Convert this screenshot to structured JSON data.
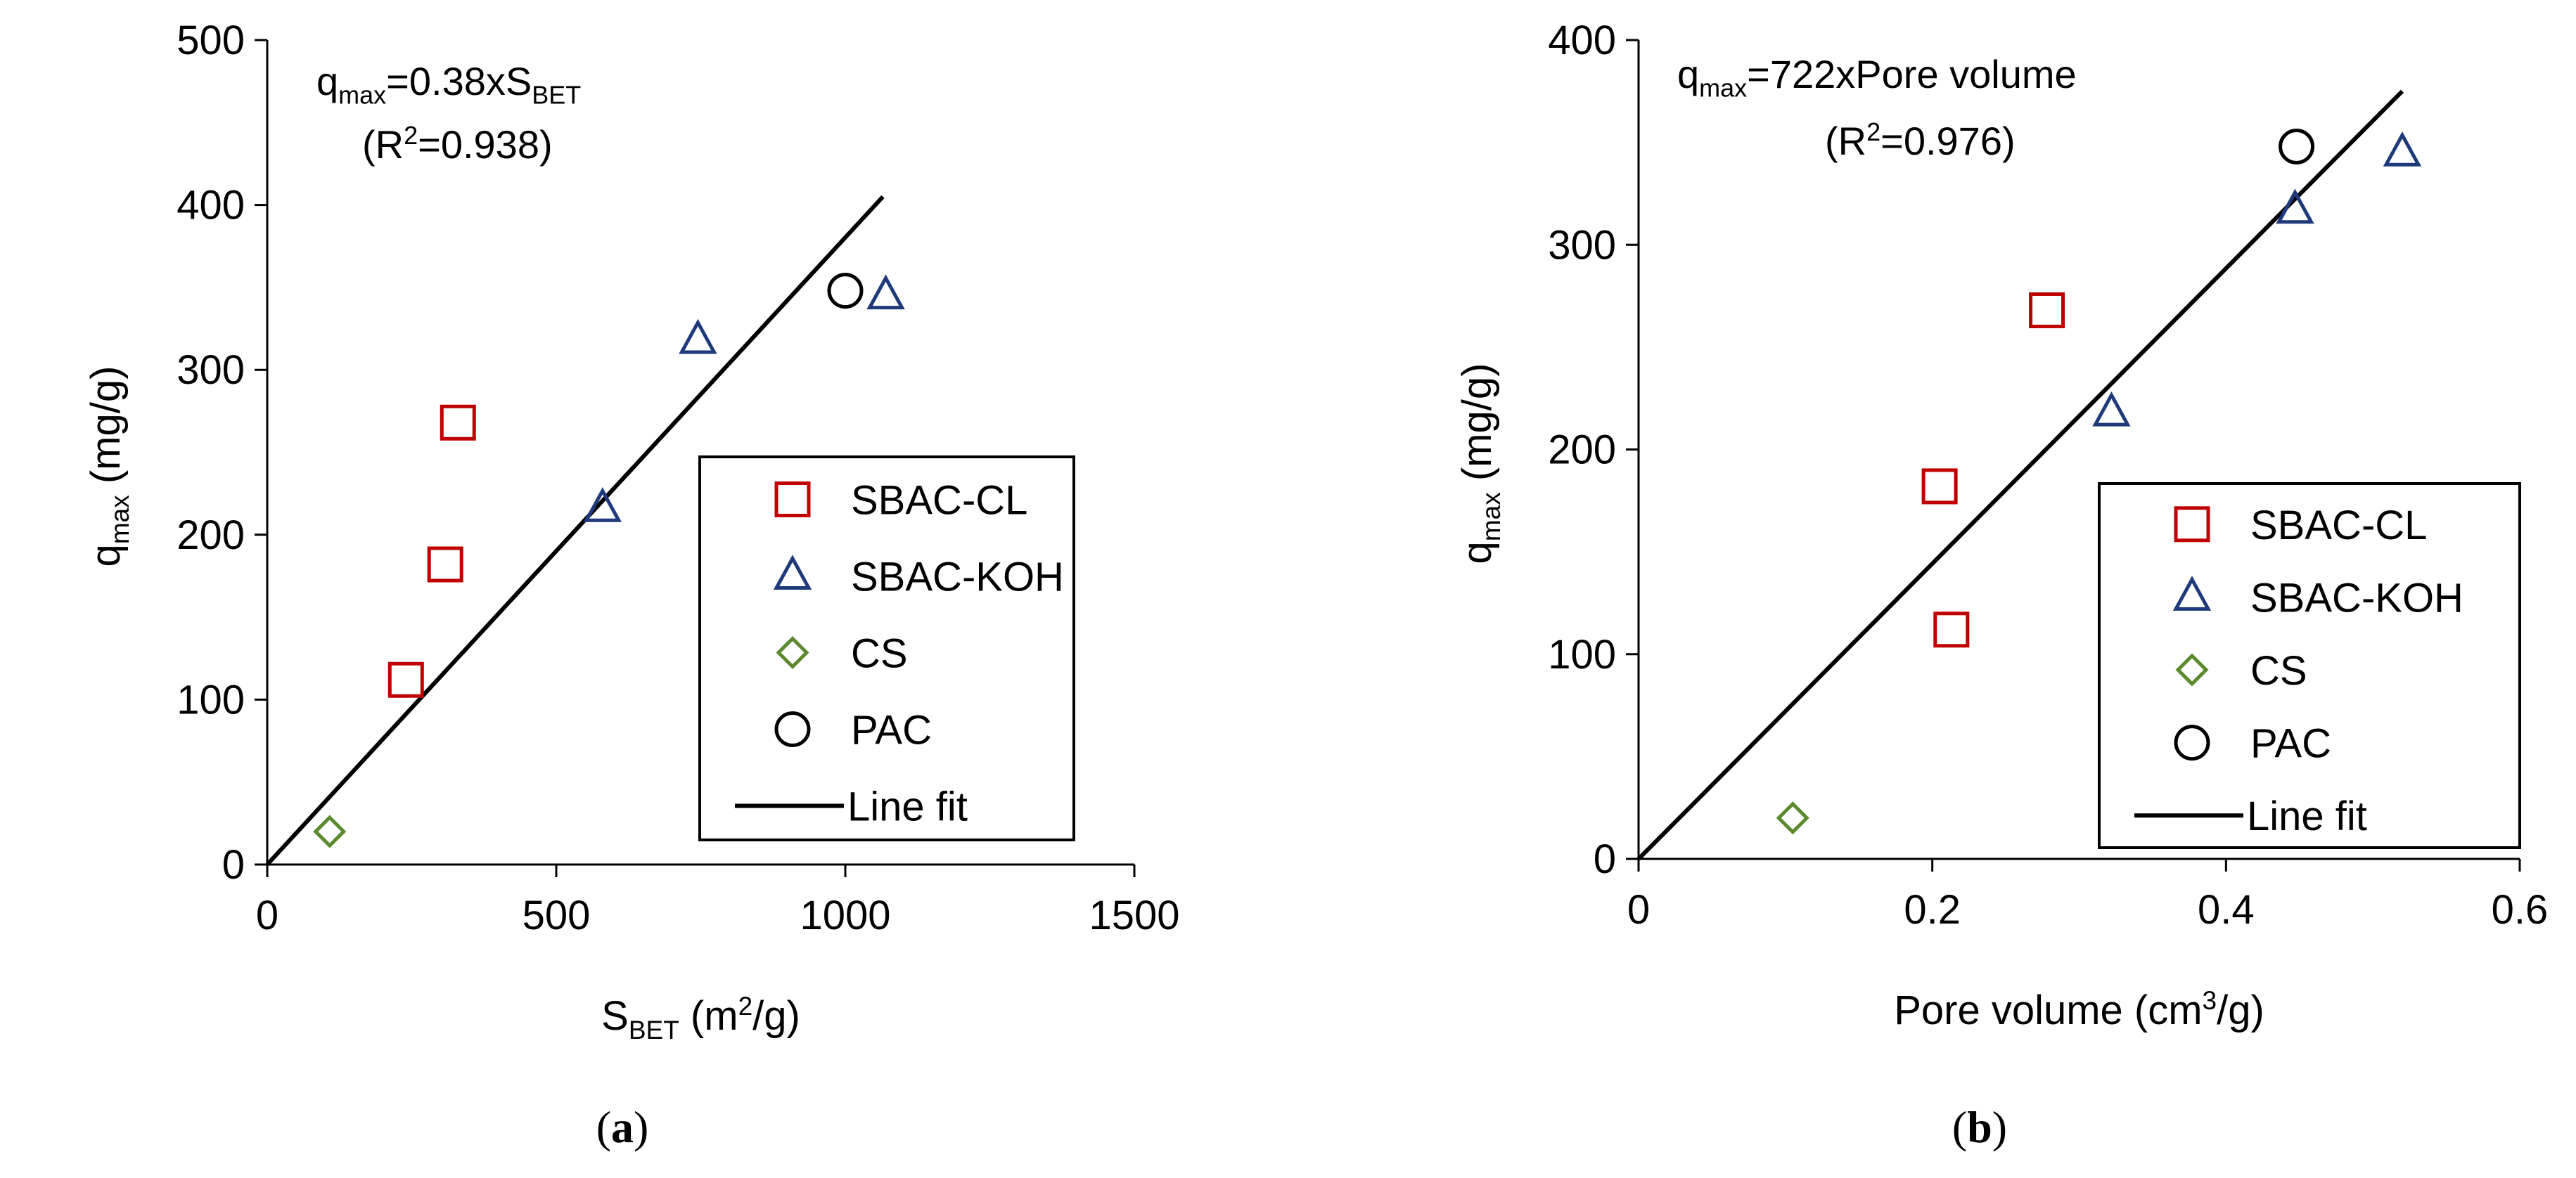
{
  "chart_data": [
    {
      "type": "scatter",
      "panel_label": "a",
      "xlabel": {
        "base": "S",
        "sub": "BET",
        "rest": " (m",
        "sup": "2",
        "end": "/g)"
      },
      "ylabel": {
        "base": "q",
        "sub": "max",
        "rest": " (mg/g)"
      },
      "xlim": [
        0,
        1500
      ],
      "ylim": [
        0,
        500
      ],
      "xticks": [
        0,
        500,
        1000,
        1500
      ],
      "yticks": [
        0,
        100,
        200,
        300,
        400,
        500
      ],
      "equation": {
        "base": "q",
        "sub": "max",
        "mid": "=0.38xS",
        "sub2": "BET"
      },
      "r2": {
        "pre": "(R",
        "sup": "2",
        "post": "=0.938)"
      },
      "fit_line": {
        "x": [
          0,
          1065
        ],
        "y": [
          0,
          405
        ]
      },
      "series": [
        {
          "name": "SBAC-CL",
          "marker": "square",
          "color": "#c00000",
          "x": [
            240,
            308,
            330
          ],
          "y": [
            112,
            182,
            268
          ]
        },
        {
          "name": "SBAC-KOH",
          "marker": "triangle",
          "color": "#1f3a7a",
          "x": [
            580,
            745,
            1070
          ],
          "y": [
            216,
            318,
            345
          ]
        },
        {
          "name": "CS",
          "marker": "diamond",
          "color": "#5b8a2e",
          "x": [
            108
          ],
          "y": [
            20
          ]
        },
        {
          "name": "PAC",
          "marker": "circle",
          "color": "#000000",
          "x": [
            1000
          ],
          "y": [
            348
          ]
        }
      ],
      "legend": {
        "placement": "bottom-right",
        "fit_label": "Line fit"
      }
    },
    {
      "type": "scatter",
      "panel_label": "b",
      "xlabel": {
        "base": "Pore volume (cm",
        "sup": "3",
        "end": "/g)"
      },
      "ylabel": {
        "base": "q",
        "sub": "max",
        "rest": " (mg/g)"
      },
      "xlim": [
        0,
        0.6
      ],
      "ylim": [
        0,
        400
      ],
      "xticks": [
        0,
        0.2,
        0.4,
        0.6
      ],
      "xtick_labels": [
        "0",
        "0.2",
        "0.4",
        "0.6"
      ],
      "yticks": [
        0,
        100,
        200,
        300,
        400
      ],
      "equation": {
        "base": "q",
        "sub": "max",
        "mid": "=722xPore volume",
        "sub2": ""
      },
      "r2": {
        "pre": "(R",
        "sup": "2",
        "post": "=0.976)"
      },
      "fit_line": {
        "x": [
          0,
          0.52
        ],
        "y": [
          0,
          375
        ]
      },
      "series": [
        {
          "name": "SBAC-CL",
          "marker": "square",
          "color": "#c00000",
          "x": [
            0.205,
            0.213,
            0.278
          ],
          "y": [
            182,
            112,
            268
          ]
        },
        {
          "name": "SBAC-KOH",
          "marker": "triangle",
          "color": "#1f3a7a",
          "x": [
            0.322,
            0.447,
            0.52
          ],
          "y": [
            218,
            317,
            345
          ]
        },
        {
          "name": "CS",
          "marker": "diamond",
          "color": "#5b8a2e",
          "x": [
            0.105
          ],
          "y": [
            20
          ]
        },
        {
          "name": "PAC",
          "marker": "circle",
          "color": "#000000",
          "x": [
            0.448
          ],
          "y": [
            348
          ]
        }
      ],
      "legend": {
        "placement": "bottom-right",
        "fit_label": "Line fit"
      }
    }
  ]
}
